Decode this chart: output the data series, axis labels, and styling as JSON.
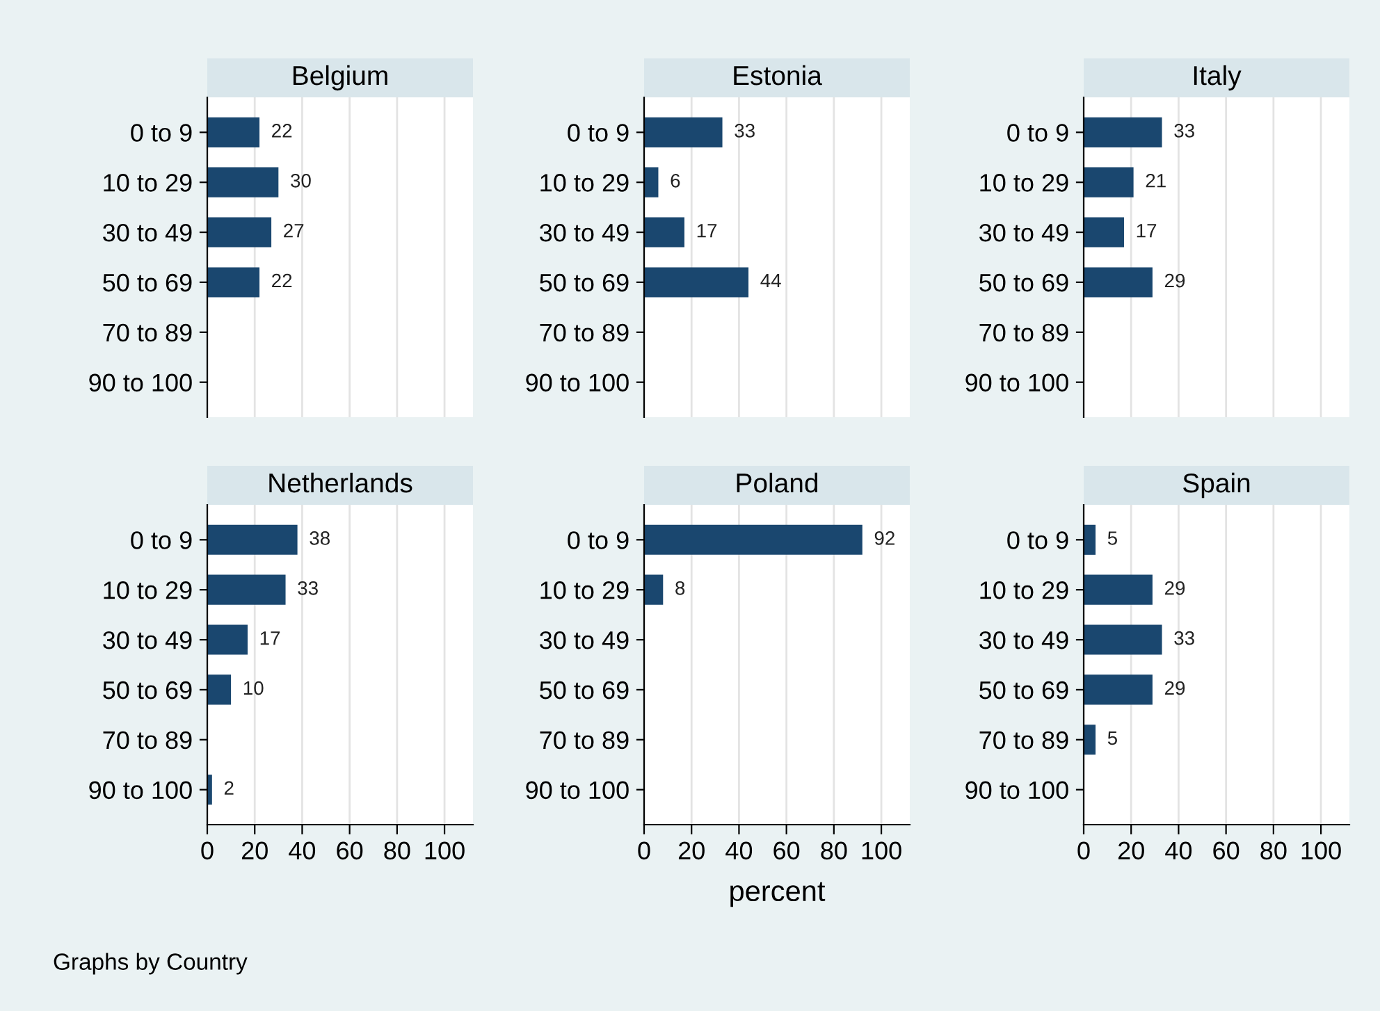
{
  "chart_data": [
    {
      "type": "bar",
      "orientation": "horizontal",
      "title": "Belgium",
      "categories": [
        "0 to 9",
        "10 to 29",
        "30 to 49",
        "50 to 69",
        "70 to 89",
        "90 to 100"
      ],
      "values": [
        22,
        30,
        27,
        22,
        null,
        null
      ],
      "color": "#1a476f",
      "data_labels": true,
      "xlim": [
        0,
        112
      ],
      "xticks": [
        0,
        20,
        40,
        60,
        80,
        100
      ],
      "grid": "x",
      "tick_labels": "y"
    },
    {
      "type": "bar",
      "orientation": "horizontal",
      "title": "Estonia",
      "categories": [
        "0 to 9",
        "10 to 29",
        "30 to 49",
        "50 to 69",
        "70 to 89",
        "90 to 100"
      ],
      "values": [
        33,
        6,
        17,
        44,
        null,
        null
      ],
      "color": "#1a476f",
      "data_labels": true,
      "xlim": [
        0,
        112
      ],
      "xticks": [
        0,
        20,
        40,
        60,
        80,
        100
      ],
      "grid": "x",
      "tick_labels": "y"
    },
    {
      "type": "bar",
      "orientation": "horizontal",
      "title": "Italy",
      "categories": [
        "0 to 9",
        "10 to 29",
        "30 to 49",
        "50 to 69",
        "70 to 89",
        "90 to 100"
      ],
      "values": [
        33,
        21,
        17,
        29,
        null,
        null
      ],
      "color": "#1a476f",
      "data_labels": true,
      "xlim": [
        0,
        112
      ],
      "xticks": [
        0,
        20,
        40,
        60,
        80,
        100
      ],
      "grid": "x",
      "tick_labels": "y"
    },
    {
      "type": "bar",
      "orientation": "horizontal",
      "title": "Netherlands",
      "categories": [
        "0 to 9",
        "10 to 29",
        "30 to 49",
        "50 to 69",
        "70 to 89",
        "90 to 100"
      ],
      "values": [
        38,
        33,
        17,
        10,
        null,
        2
      ],
      "color": "#1a476f",
      "data_labels": true,
      "xlim": [
        0,
        112
      ],
      "xticks": [
        0,
        20,
        40,
        60,
        80,
        100
      ],
      "grid": "x",
      "annotations": [
        "Graphs by Country"
      ]
    },
    {
      "type": "bar",
      "orientation": "horizontal",
      "title": "Poland",
      "categories": [
        "0 to 9",
        "10 to 29",
        "30 to 49",
        "50 to 69",
        "70 to 89",
        "90 to 100"
      ],
      "values": [
        92,
        8,
        null,
        null,
        null,
        null
      ],
      "color": "#1a476f",
      "data_labels": true,
      "xlim": [
        0,
        112
      ],
      "xticks": [
        0,
        20,
        40,
        60,
        80,
        100
      ],
      "grid": "x",
      "xlabel": "percent"
    },
    {
      "type": "bar",
      "orientation": "horizontal",
      "title": "Spain",
      "categories": [
        "0 to 9",
        "10 to 29",
        "30 to 49",
        "50 to 69",
        "70 to 89",
        "90 to 100"
      ],
      "values": [
        5,
        29,
        33,
        29,
        5,
        null
      ],
      "color": "#1a476f",
      "data_labels": true,
      "xlim": [
        0,
        112
      ],
      "xticks": [
        0,
        20,
        40,
        60,
        80,
        100
      ],
      "grid": "x"
    }
  ]
}
